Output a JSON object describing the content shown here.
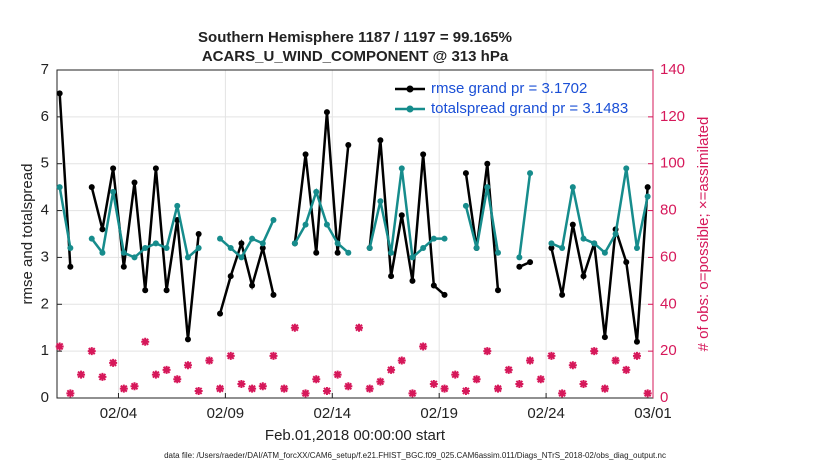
{
  "chart_data": {
    "type": "line",
    "title": "Southern Hemisphere 1187 / 1197 = 99.165%",
    "subtitle": "ACARS_U_WIND_COMPONENT @ 313 hPa",
    "y_label": "rmse and totalspread",
    "y2_label": "# of obs: o=possible; ×=assimilated",
    "x_label": "Feb.01,2018 00:00:00 start",
    "footnote": "data file: /Users/raeder/DAI/ATM_forcXX/CAM6_setup/f.e21.FHIST_BGC.f09_025.CAM6assim.011/Diags_NTrS_2018-02/obs_diag_output.nc",
    "xlim": [
      0.125,
      28
    ],
    "xticks": [
      {
        "value": 3,
        "label": "02/04"
      },
      {
        "value": 8,
        "label": "02/09"
      },
      {
        "value": 13,
        "label": "02/14"
      },
      {
        "value": 18,
        "label": "02/19"
      },
      {
        "value": 23,
        "label": "02/24"
      },
      {
        "value": 28,
        "label": "03/01"
      }
    ],
    "ylim": [
      0,
      7
    ],
    "yticks": [
      0,
      1,
      2,
      3,
      4,
      5,
      6,
      7
    ],
    "y2lim": [
      0,
      140
    ],
    "y2ticks": [
      0,
      20,
      40,
      60,
      80,
      100,
      120,
      140
    ],
    "grid": true,
    "legend": "top-right",
    "x": [
      0.25,
      0.75,
      1.25,
      1.75,
      2.25,
      2.75,
      3.25,
      3.75,
      4.25,
      4.75,
      5.25,
      5.75,
      6.25,
      6.75,
      7.25,
      7.75,
      8.25,
      8.75,
      9.25,
      9.75,
      10.25,
      10.75,
      11.25,
      11.75,
      12.25,
      12.75,
      13.25,
      13.75,
      14.25,
      14.75,
      15.25,
      15.75,
      16.25,
      16.75,
      17.25,
      17.75,
      18.25,
      18.75,
      19.25,
      19.75,
      20.25,
      20.75,
      21.25,
      21.75,
      22.25,
      22.75,
      23.25,
      23.75,
      24.25,
      24.75,
      25.25,
      25.75,
      26.25,
      26.75,
      27.25,
      27.75
    ],
    "series": [
      {
        "name": "rmse grand pr = 3.1702",
        "color": "#000000",
        "values": [
          6.5,
          2.8,
          null,
          4.5,
          3.6,
          4.9,
          2.8,
          4.6,
          2.3,
          4.9,
          2.3,
          3.8,
          1.25,
          3.5,
          null,
          1.8,
          2.6,
          3.3,
          2.4,
          3.2,
          2.2,
          null,
          3.3,
          5.2,
          3.1,
          6.1,
          3.1,
          5.4,
          null,
          3.2,
          5.5,
          2.6,
          3.9,
          2.5,
          5.2,
          2.4,
          2.2,
          null,
          4.8,
          3.2,
          5.0,
          2.3,
          null,
          2.8,
          2.9,
          null,
          3.2,
          2.2,
          3.7,
          2.6,
          3.3,
          1.3,
          3.6,
          2.9,
          1.2,
          4.5
        ]
      },
      {
        "name": "totalspread grand pr = 3.1483",
        "color": "#168c8c",
        "values": [
          4.5,
          3.2,
          null,
          3.4,
          3.1,
          4.4,
          3.1,
          3.0,
          3.2,
          3.3,
          3.2,
          4.1,
          3.0,
          3.2,
          null,
          3.4,
          3.2,
          3.0,
          3.4,
          3.3,
          3.8,
          null,
          3.3,
          3.7,
          4.4,
          3.7,
          3.3,
          3.1,
          null,
          3.2,
          4.2,
          3.1,
          4.9,
          3.0,
          3.2,
          3.4,
          3.4,
          null,
          4.1,
          3.2,
          4.5,
          3.1,
          null,
          3.0,
          4.8,
          null,
          3.3,
          3.2,
          4.5,
          3.4,
          3.3,
          3.1,
          3.5,
          4.9,
          3.2,
          4.3
        ]
      }
    ],
    "obs_assimilated": {
      "color": "#d6185a",
      "axis": "y2",
      "values": [
        22,
        2,
        10,
        20,
        9,
        15,
        4,
        5,
        24,
        10,
        12,
        8,
        14,
        3,
        16,
        4,
        18,
        6,
        4,
        5,
        18,
        4,
        30,
        2,
        8,
        3,
        10,
        5,
        30,
        4,
        7,
        12,
        16,
        2,
        22,
        6,
        4,
        10,
        3,
        8,
        20,
        4,
        12,
        6,
        16,
        8,
        18,
        2,
        14,
        6,
        20,
        4,
        16,
        12,
        18,
        2
      ]
    }
  }
}
